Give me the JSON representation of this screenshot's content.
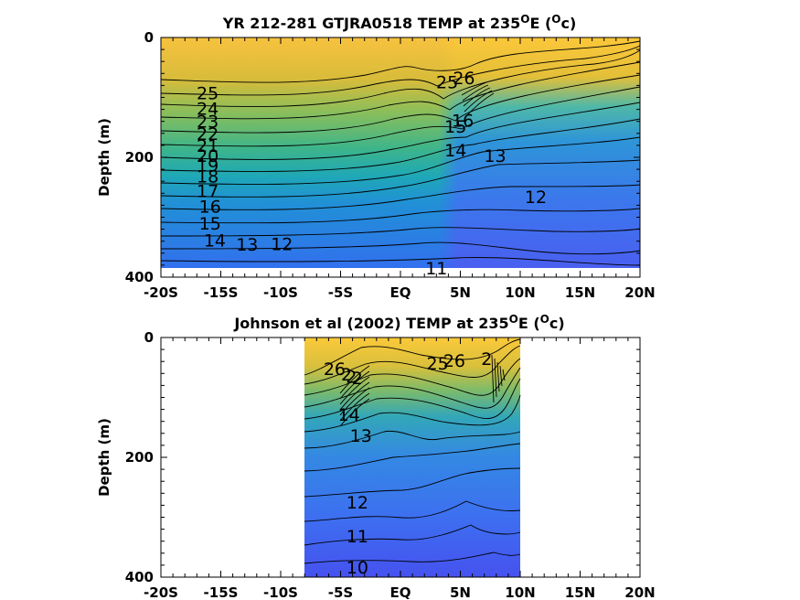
{
  "chart_data": [
    {
      "type": "contour",
      "title_main": "YR 212-281 GTJRA0518 TEMP at 235",
      "title_sup": "O",
      "title_end": "E (",
      "title_sup2": "O",
      "title_tail": "c)",
      "ylabel": "Depth (m)",
      "xlabel": "",
      "xlim": [
        -20,
        20
      ],
      "ylim": [
        400,
        0
      ],
      "xticks": [
        -20,
        -15,
        -10,
        -5,
        0,
        5,
        10,
        15,
        20
      ],
      "xticklabels": [
        "-20S",
        "-15S",
        "-10S",
        "-5S",
        "EQ",
        "5N",
        "10N",
        "15N",
        "20N"
      ],
      "yticks": [
        0,
        200,
        400
      ],
      "yticklabels": [
        "0",
        "200",
        "400"
      ],
      "data_extent": {
        "x": [
          -20,
          20
        ],
        "y": [
          0,
          385
        ]
      },
      "contour_labels": [
        {
          "text": "25",
          "x": -16.1,
          "y": 92
        },
        {
          "text": "24",
          "x": -16.1,
          "y": 118
        },
        {
          "text": "23",
          "x": -16.1,
          "y": 140
        },
        {
          "text": "22",
          "x": -16.1,
          "y": 160
        },
        {
          "text": "21",
          "x": -16.1,
          "y": 180
        },
        {
          "text": "20",
          "x": -16.1,
          "y": 197
        },
        {
          "text": "19",
          "x": -16.1,
          "y": 213
        },
        {
          "text": "18",
          "x": -16.1,
          "y": 231
        },
        {
          "text": "17",
          "x": -16.1,
          "y": 256
        },
        {
          "text": "16",
          "x": -15.9,
          "y": 282
        },
        {
          "text": "15",
          "x": -15.9,
          "y": 310
        },
        {
          "text": "14",
          "x": -15.5,
          "y": 338
        },
        {
          "text": "13",
          "x": -12.8,
          "y": 345
        },
        {
          "text": "12",
          "x": -9.9,
          "y": 344
        },
        {
          "text": "11",
          "x": 3.0,
          "y": 385
        },
        {
          "text": "25",
          "x": 3.9,
          "y": 74
        },
        {
          "text": "26",
          "x": 5.3,
          "y": 67
        },
        {
          "text": "15",
          "x": 4.6,
          "y": 148
        },
        {
          "text": "16",
          "x": 5.2,
          "y": 138
        },
        {
          "text": "14",
          "x": 4.6,
          "y": 188
        },
        {
          "text": "13",
          "x": 7.9,
          "y": 197
        },
        {
          "text": "12",
          "x": 11.3,
          "y": 266
        }
      ],
      "levels": [
        11,
        12,
        13,
        14,
        15,
        16,
        17,
        18,
        19,
        20,
        21,
        22,
        23,
        24,
        25,
        26
      ]
    },
    {
      "type": "contour",
      "title_main": "Johnson et al (2002) TEMP at 235",
      "title_sup": "O",
      "title_end": "E (",
      "title_sup2": "O",
      "title_tail": "c)",
      "ylabel": "Depth (m)",
      "xlabel": "",
      "xlim": [
        -20,
        20
      ],
      "ylim": [
        400,
        0
      ],
      "xticks": [
        -20,
        -15,
        -10,
        -5,
        0,
        5,
        10,
        15,
        20
      ],
      "xticklabels": [
        "-20S",
        "-15S",
        "-10S",
        "-5S",
        "EQ",
        "5N",
        "10N",
        "15N",
        "20N"
      ],
      "yticks": [
        0,
        200,
        400
      ],
      "yticklabels": [
        "0",
        "200",
        "400"
      ],
      "data_extent": {
        "x": [
          -8,
          10
        ],
        "y": [
          0,
          400
        ]
      },
      "contour_labels": [
        {
          "text": "26",
          "x": -5.5,
          "y": 52
        },
        {
          "text": "2",
          "x": -4.5,
          "y": 61
        },
        {
          "text": "2",
          "x": -4.1,
          "y": 65
        },
        {
          "text": "2",
          "x": -3.6,
          "y": 67
        },
        {
          "text": "14",
          "x": -4.3,
          "y": 128
        },
        {
          "text": "13",
          "x": -3.3,
          "y": 163
        },
        {
          "text": "12",
          "x": -3.6,
          "y": 275
        },
        {
          "text": "11",
          "x": -3.6,
          "y": 331
        },
        {
          "text": "10",
          "x": -3.6,
          "y": 383
        },
        {
          "text": "25",
          "x": 3.1,
          "y": 43
        },
        {
          "text": "26",
          "x": 4.5,
          "y": 38
        },
        {
          "text": "2",
          "x": 7.2,
          "y": 35
        }
      ],
      "levels": [
        10,
        11,
        12,
        13,
        14,
        15,
        16,
        17,
        18,
        19,
        20,
        21,
        22,
        23,
        24,
        25,
        26
      ]
    }
  ]
}
